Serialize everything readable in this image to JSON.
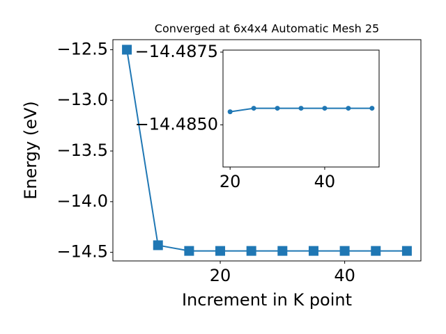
{
  "chart_data": [
    {
      "type": "line",
      "title": "Converged at 6x4x4 Automatic Mesh 25",
      "xlabel": "Increment in K point",
      "ylabel": "Energy (eV)",
      "x": [
        5,
        10,
        15,
        20,
        25,
        30,
        35,
        40,
        45,
        50
      ],
      "values": [
        -12.5,
        -14.43,
        -14.486,
        -14.486,
        -14.486,
        -14.486,
        -14.486,
        -14.486,
        -14.486,
        -14.486
      ],
      "color": "#1f77b4",
      "marker": "square",
      "xlim": [
        2.75,
        52.25
      ],
      "ylim": [
        -14.585,
        -12.401
      ],
      "xticks": [
        20,
        40
      ],
      "yticks": [
        {
          "value": -14.5,
          "label": "−14.5"
        },
        {
          "value": -14.0,
          "label": "−14.0"
        },
        {
          "value": -13.5,
          "label": "−13.5"
        },
        {
          "value": -13.0,
          "label": "−13.0"
        },
        {
          "value": -12.5,
          "label": "−12.5"
        }
      ]
    },
    {
      "type": "line",
      "x": [
        20,
        25,
        30,
        35,
        40,
        45,
        50
      ],
      "values": [
        -14.48545,
        -14.48557,
        -14.48557,
        -14.48557,
        -14.48557,
        -14.48557,
        -14.48557
      ],
      "color": "#1f77b4",
      "marker": "circle",
      "xlim": [
        18.5,
        51.5
      ],
      "ylim": [
        -14.48355,
        -14.48757
      ],
      "xticks": [
        20,
        40
      ],
      "yticks": [
        {
          "value": -14.4875,
          "label": "−14.4875"
        },
        {
          "value": -14.485,
          "label": "−14.4850"
        }
      ]
    }
  ]
}
